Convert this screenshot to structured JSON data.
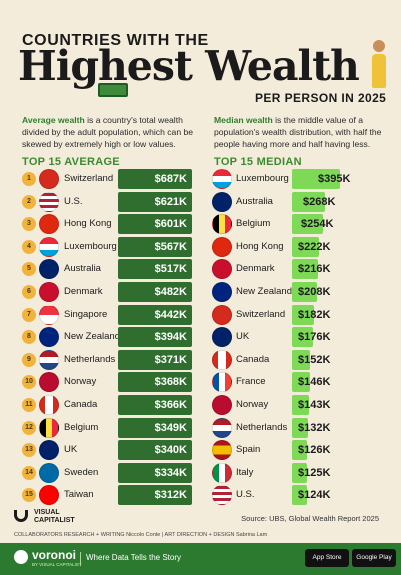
{
  "title": {
    "line1": "COUNTRIES WITH THE",
    "line2": "Highest Wealth",
    "line3": "PER PERSON IN 2025"
  },
  "descriptions": {
    "average": {
      "term": "Average wealth",
      "text": " is a country's total wealth divided by the adult population, which can be skewed by extremely high or low values."
    },
    "median": {
      "term": "Median wealth",
      "text": " is the middle value of a population's wealth distribution, with half the people having more and half having less."
    }
  },
  "colors": {
    "accent_green": "#2f6e2f",
    "light_green": "#7ed957",
    "rank_gold": "#f2b33d",
    "background": "#f4ecdb"
  },
  "chart_data": [
    {
      "type": "bar",
      "title": "TOP 15 AVERAGE",
      "categories": [
        "Switzerland",
        "U.S.",
        "Hong Kong",
        "Luxembourg",
        "Australia",
        "Denmark",
        "Singapore",
        "New Zealand",
        "Netherlands",
        "Norway",
        "Canada",
        "Belgium",
        "UK",
        "Sweden",
        "Taiwan"
      ],
      "ranks": [
        "1",
        "2",
        "3",
        "4",
        "5",
        "6",
        "7",
        "8",
        "9",
        "10",
        "11",
        "12",
        "13",
        "14",
        "15"
      ],
      "values": [
        687,
        621,
        601,
        567,
        517,
        482,
        442,
        394,
        371,
        368,
        366,
        349,
        340,
        334,
        312
      ],
      "labels": [
        "$687K",
        "$621K",
        "$601K",
        "$567K",
        "$517K",
        "$482K",
        "$442K",
        "$394K",
        "$371K",
        "$368K",
        "$366K",
        "$349K",
        "$340K",
        "$334K",
        "$312K"
      ],
      "flags": [
        "switzerland-flag-icon",
        "us-flag-icon",
        "hong-kong-flag-icon",
        "luxembourg-flag-icon",
        "australia-flag-icon",
        "denmark-flag-icon",
        "singapore-flag-icon",
        "new-zealand-flag-icon",
        "netherlands-flag-icon",
        "norway-flag-icon",
        "canada-flag-icon",
        "belgium-flag-icon",
        "uk-flag-icon",
        "sweden-flag-icon",
        "taiwan-flag-icon"
      ]
    },
    {
      "type": "bar",
      "title": "TOP 15 MEDIAN",
      "categories": [
        "Luxembourg",
        "Australia",
        "Belgium",
        "Hong Kong",
        "Denmark",
        "New Zealand",
        "Switzerland",
        "UK",
        "Canada",
        "France",
        "Norway",
        "Netherlands",
        "Spain",
        "Italy",
        "U.S."
      ],
      "values": [
        395,
        268,
        254,
        222,
        216,
        208,
        182,
        176,
        152,
        146,
        143,
        132,
        126,
        125,
        124
      ],
      "labels": [
        "$395K",
        "$268K",
        "$254K",
        "$222K",
        "$216K",
        "$208K",
        "$182K",
        "$176K",
        "$152K",
        "$146K",
        "$143K",
        "$132K",
        "$126K",
        "$125K",
        "$124K"
      ],
      "flags": [
        "luxembourg-flag-icon",
        "australia-flag-icon",
        "belgium-flag-icon",
        "hong-kong-flag-icon",
        "denmark-flag-icon",
        "new-zealand-flag-icon",
        "switzerland-flag-icon",
        "uk-flag-icon",
        "canada-flag-icon",
        "france-flag-icon",
        "norway-flag-icon",
        "netherlands-flag-icon",
        "spain-flag-icon",
        "italy-flag-icon",
        "us-flag-icon"
      ]
    }
  ],
  "source": "Source: UBS, Global Wealth Report 2025",
  "brand": {
    "name": "VISUAL CAPITALIST",
    "credits": "COLLABORATORS  RESEARCH + WRITING Niccolo Conte  |  ART DIRECTION + DESIGN Sabrina Lam"
  },
  "footer": {
    "logo": "voronoi",
    "logo_sub": "BY VISUAL CAPITALIST",
    "tagline": "Where Data Tells the Story",
    "app_store": "App Store",
    "google_play": "Google Play"
  }
}
